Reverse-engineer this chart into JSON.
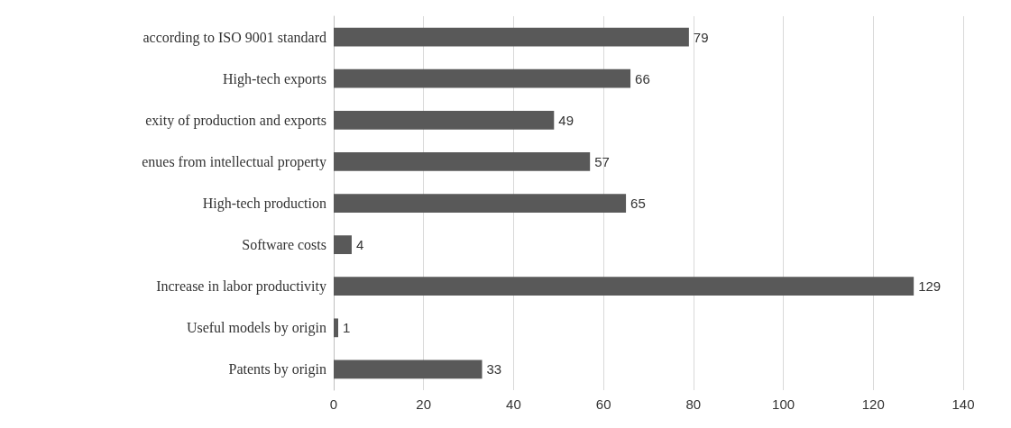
{
  "chart_data": {
    "type": "bar",
    "orientation": "horizontal",
    "categories": [
      "according to ISO 9001 standard",
      "High-tech exports",
      "exity of production and exports",
      "enues from intellectual property",
      "High-tech production",
      "Software costs",
      "Increase in labor productivity",
      "Useful models by origin",
      "Patents by origin"
    ],
    "values": [
      79,
      66,
      49,
      57,
      65,
      4,
      129,
      1,
      33
    ],
    "color": "#595959",
    "xlim": [
      0,
      140
    ],
    "xticks": [
      0,
      20,
      40,
      60,
      80,
      100,
      120,
      140
    ],
    "grid": "x",
    "data_labels": true
  }
}
